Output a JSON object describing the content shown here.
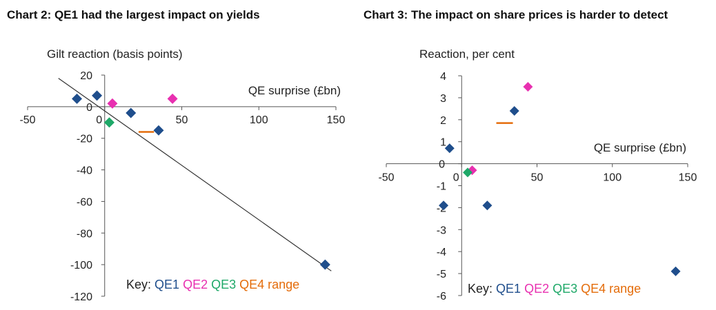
{
  "chart_data": [
    {
      "type": "scatter",
      "title": "Chart 2:  QE1 had the largest impact on yields",
      "ylabel": "Gilt reaction (basis points)",
      "xlabel": "QE surprise (£bn)",
      "xlim": [
        -50,
        150
      ],
      "ylim": [
        -120,
        20
      ],
      "x_ticks": [
        -50,
        0,
        50,
        100,
        150
      ],
      "y_ticks": [
        20,
        0,
        -20,
        -40,
        -60,
        -80,
        -100,
        -120
      ],
      "series": [
        {
          "name": "QE1",
          "color": "#1F4E8C",
          "points": [
            {
              "x": -18,
              "y": 5
            },
            {
              "x": -5,
              "y": 7
            },
            {
              "x": 17,
              "y": -4
            },
            {
              "x": 35,
              "y": -15
            },
            {
              "x": 143,
              "y": -100
            }
          ]
        },
        {
          "name": "QE2",
          "color": "#E830B0",
          "points": [
            {
              "x": 5,
              "y": 2
            },
            {
              "x": 44,
              "y": 5
            }
          ]
        },
        {
          "name": "QE3",
          "color": "#1EA868",
          "points": [
            {
              "x": 3,
              "y": -10
            }
          ]
        },
        {
          "name": "QE4 range",
          "color": "#E46C0A",
          "range": {
            "x1": 22,
            "x2": 32,
            "y": -16
          }
        }
      ],
      "trendline": {
        "x1": -30,
        "y1": 18,
        "x2": 147,
        "y2": -104
      },
      "key": {
        "prefix": "Key:",
        "labels": [
          "QE1",
          "QE2",
          "QE3",
          "QE4 range"
        ]
      }
    },
    {
      "type": "scatter",
      "title": "Chart 3:  The impact on share prices is harder to detect",
      "ylabel": "Reaction, per cent",
      "xlabel": "QE surprise (£bn)",
      "xlim": [
        -50,
        150
      ],
      "ylim": [
        -6,
        4
      ],
      "x_ticks": [
        -50,
        0,
        50,
        100,
        150
      ],
      "y_ticks": [
        4,
        3,
        2,
        1,
        0,
        -1,
        -2,
        -3,
        -4,
        -5,
        -6
      ],
      "series": [
        {
          "name": "QE1",
          "color": "#1F4E8C",
          "points": [
            {
              "x": -8,
              "y": 0.7
            },
            {
              "x": 35,
              "y": 2.4
            },
            {
              "x": -12,
              "y": -1.9
            },
            {
              "x": 17,
              "y": -1.9
            },
            {
              "x": 142,
              "y": -4.9
            }
          ]
        },
        {
          "name": "QE2",
          "color": "#E830B0",
          "points": [
            {
              "x": 44,
              "y": 3.5
            },
            {
              "x": 7,
              "y": -0.3
            }
          ]
        },
        {
          "name": "QE3",
          "color": "#1EA868",
          "points": [
            {
              "x": 4,
              "y": -0.4
            }
          ]
        },
        {
          "name": "QE4 range",
          "color": "#E46C0A",
          "range": {
            "x1": 23,
            "x2": 34,
            "y": 1.85
          }
        }
      ],
      "key": {
        "prefix": "Key:",
        "labels": [
          "QE1",
          "QE2",
          "QE3",
          "QE4 range"
        ]
      }
    }
  ]
}
